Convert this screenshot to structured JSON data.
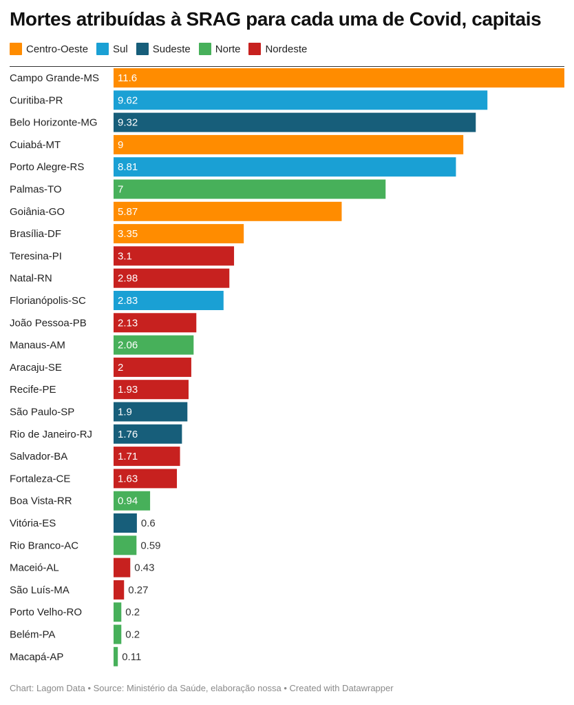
{
  "chart_data": {
    "type": "bar",
    "orientation": "horizontal",
    "title": "Mortes atribuídas à SRAG para cada uma de Covid, capitais",
    "legend": [
      {
        "name": "Centro-Oeste",
        "color": "#ff8c00"
      },
      {
        "name": "Sul",
        "color": "#1aa0d4"
      },
      {
        "name": "Sudeste",
        "color": "#175e7a"
      },
      {
        "name": "Norte",
        "color": "#47b05a"
      },
      {
        "name": "Nordeste",
        "color": "#c7211f"
      }
    ],
    "legend_placement": "top-left",
    "categories": [
      "Campo Grande-MS",
      "Curitiba-PR",
      "Belo Horizonte-MG",
      "Cuiabá-MT",
      "Porto Alegre-RS",
      "Palmas-TO",
      "Goiânia-GO",
      "Brasília-DF",
      "Teresina-PI",
      "Natal-RN",
      "Florianópolis-SC",
      "João Pessoa-PB",
      "Manaus-AM",
      "Aracaju-SE",
      "Recife-PE",
      "São Paulo-SP",
      "Rio de Janeiro-RJ",
      "Salvador-BA",
      "Fortaleza-CE",
      "Boa Vista-RR",
      "Vitória-ES",
      "Rio Branco-AC",
      "Maceió-AL",
      "São Luís-MA",
      "Porto Velho-RO",
      "Belém-PA",
      "Macapá-AP"
    ],
    "values": [
      11.6,
      9.62,
      9.32,
      9,
      8.81,
      7,
      5.87,
      3.35,
      3.1,
      2.98,
      2.83,
      2.13,
      2.06,
      2,
      1.93,
      1.9,
      1.76,
      1.71,
      1.63,
      0.94,
      0.6,
      0.59,
      0.43,
      0.27,
      0.2,
      0.2,
      0.11
    ],
    "value_labels": [
      "11.6",
      "9.62",
      "9.32",
      "9",
      "8.81",
      "7",
      "5.87",
      "3.35",
      "3.1",
      "2.98",
      "2.83",
      "2.13",
      "2.06",
      "2",
      "1.93",
      "1.9",
      "1.76",
      "1.71",
      "1.63",
      "0.94",
      "0.6",
      "0.59",
      "0.43",
      "0.27",
      "0.2",
      "0.2",
      "0.11"
    ],
    "regions": [
      "Centro-Oeste",
      "Sul",
      "Sudeste",
      "Centro-Oeste",
      "Sul",
      "Norte",
      "Centro-Oeste",
      "Centro-Oeste",
      "Nordeste",
      "Nordeste",
      "Sul",
      "Nordeste",
      "Norte",
      "Nordeste",
      "Nordeste",
      "Sudeste",
      "Sudeste",
      "Nordeste",
      "Nordeste",
      "Norte",
      "Sudeste",
      "Norte",
      "Nordeste",
      "Nordeste",
      "Norte",
      "Norte",
      "Norte"
    ],
    "xlim": [
      0,
      11.6
    ],
    "grid": false
  },
  "footer": "Chart: Lagom Data • Source: Ministério da Saúde, elaboração nossa • Created with Datawrapper"
}
